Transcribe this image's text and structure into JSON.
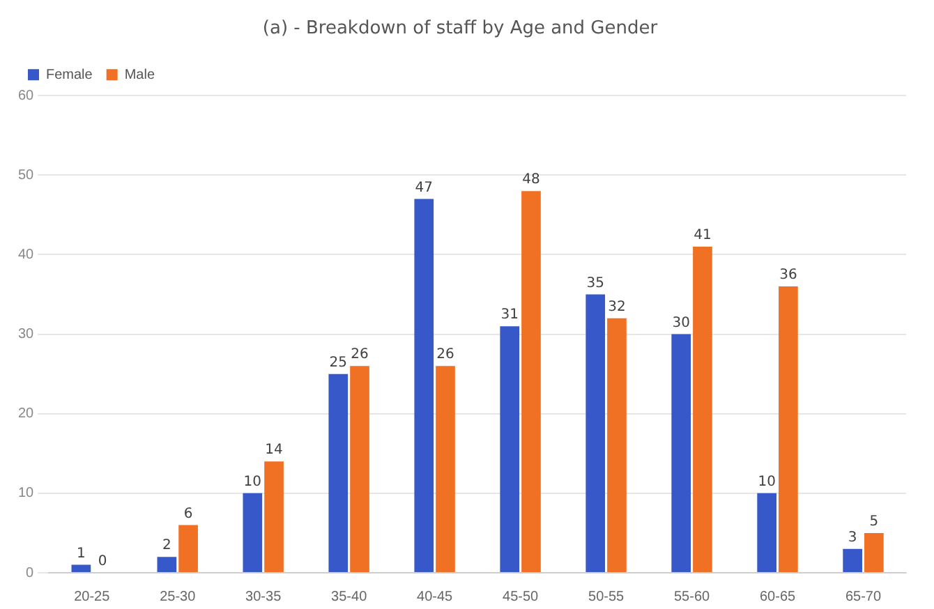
{
  "chart_data": {
    "type": "bar",
    "title": "(a) - Breakdown of staff by Age and Gender",
    "categories": [
      "20-25",
      "25-30",
      "30-35",
      "35-40",
      "40-45",
      "45-50",
      "50-55",
      "55-60",
      "60-65",
      "65-70"
    ],
    "series": [
      {
        "name": "Female",
        "color": "#3658c8",
        "values": [
          1,
          2,
          10,
          25,
          47,
          31,
          35,
          30,
          10,
          3
        ]
      },
      {
        "name": "Male",
        "color": "#f07024",
        "values": [
          0,
          6,
          14,
          26,
          26,
          48,
          32,
          41,
          36,
          5
        ]
      }
    ],
    "ylim": [
      0,
      60
    ],
    "yticks": [
      0,
      10,
      20,
      30,
      40,
      50,
      60
    ],
    "grid": "y",
    "legend": "top left",
    "data_labels": true
  }
}
